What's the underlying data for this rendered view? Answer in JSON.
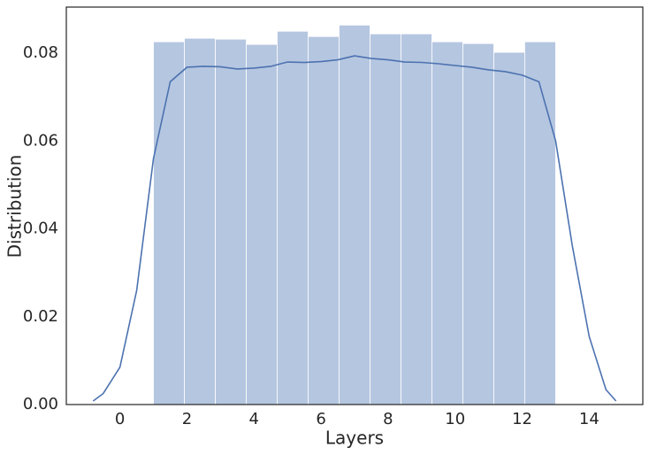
{
  "chart_data": {
    "type": "histogram",
    "x_label": "Layers",
    "y_label": "Distribution",
    "bins": [
      1,
      1.923,
      2.846,
      3.769,
      4.692,
      5.615,
      6.538,
      7.462,
      8.385,
      9.308,
      10.231,
      11.154,
      12.077,
      13
    ],
    "values": [
      0.0826,
      0.0834,
      0.0832,
      0.082,
      0.085,
      0.0838,
      0.0864,
      0.0844,
      0.0844,
      0.0826,
      0.0822,
      0.0802,
      0.0826
    ],
    "color": "#b5c6e0",
    "kde": {
      "color": "#4c72b0",
      "x": [
        -0.8,
        -0.5,
        0,
        0.5,
        1,
        1.5,
        2,
        2.5,
        3,
        3.5,
        4,
        4.5,
        5,
        5.5,
        6,
        6.5,
        7,
        7.5,
        8,
        8.5,
        9,
        9.5,
        10,
        10.5,
        11,
        11.5,
        12,
        12.5,
        13,
        13.5,
        14,
        14.5,
        14.8
      ],
      "values": [
        0.0008,
        0.0025,
        0.0085,
        0.026,
        0.056,
        0.0735,
        0.0768,
        0.077,
        0.0769,
        0.0764,
        0.0766,
        0.077,
        0.078,
        0.0779,
        0.0781,
        0.0785,
        0.0794,
        0.0788,
        0.0785,
        0.078,
        0.0779,
        0.0776,
        0.0772,
        0.0768,
        0.0762,
        0.0758,
        0.075,
        0.0735,
        0.06,
        0.036,
        0.0155,
        0.0034,
        0.0008
      ]
    },
    "xlim": [
      -1.6,
      15.6
    ],
    "xticks": [
      0,
      2,
      4,
      6,
      8,
      10,
      12,
      14
    ],
    "ylim": [
      0,
      0.0905
    ],
    "yticks": [
      {
        "value": 0,
        "label": "0.00"
      },
      0.02,
      0.04,
      0.06,
      0.08
    ],
    "grid": false
  }
}
